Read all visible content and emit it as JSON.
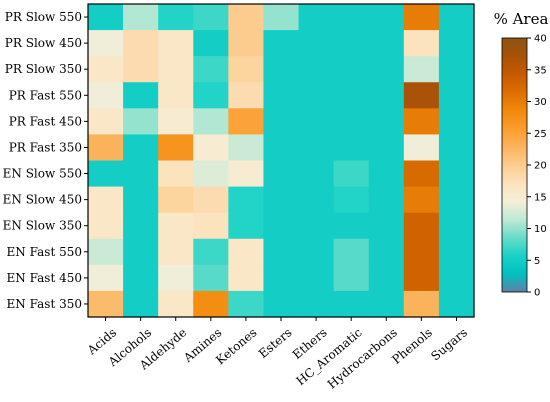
{
  "chart_data": {
    "type": "heatmap",
    "title": "",
    "xlabel": "",
    "ylabel": "",
    "x_categories": [
      "Acids",
      "Alcohols",
      "Aldehyde",
      "Amines",
      "Ketones",
      "Esters",
      "Ethers",
      "HC_Aromatic",
      "Hydrocarbons",
      "Phenols",
      "Sugars"
    ],
    "y_categories": [
      "PR Slow 550",
      "PR Slow 450",
      "PR Slow 350",
      "PR Fast 550",
      "PR Fast 450",
      "PR Fast 350",
      "EN Slow 550",
      "EN Slow 450",
      "EN Slow 350",
      "EN Fast 550",
      "EN Fast 450",
      "EN Fast 350"
    ],
    "values": [
      [
        5,
        11,
        6,
        7,
        20,
        10,
        5,
        5,
        5,
        30,
        5
      ],
      [
        14,
        18,
        16,
        5,
        20,
        5,
        5,
        5,
        5,
        17,
        5
      ],
      [
        16,
        18,
        16,
        7,
        19,
        5,
        5,
        5,
        5,
        12,
        5
      ],
      [
        14,
        5,
        16,
        6,
        18,
        5,
        5,
        5,
        5,
        37,
        5
      ],
      [
        16,
        10,
        15,
        11,
        25,
        5,
        5,
        5,
        5,
        30,
        5
      ],
      [
        23,
        5,
        27,
        15,
        12,
        5,
        5,
        5,
        5,
        14,
        5
      ],
      [
        5,
        5,
        17,
        13,
        15,
        5,
        5,
        7,
        5,
        32,
        5
      ],
      [
        16,
        5,
        19,
        18,
        6,
        5,
        5,
        6,
        5,
        30,
        5
      ],
      [
        16,
        5,
        16,
        17,
        6,
        5,
        5,
        5,
        5,
        33,
        5
      ],
      [
        12,
        5,
        16,
        7,
        16,
        5,
        5,
        8,
        5,
        33,
        5
      ],
      [
        14,
        5,
        14,
        8,
        16,
        5,
        5,
        8,
        5,
        33,
        5
      ],
      [
        22,
        5,
        16,
        28,
        7,
        5,
        5,
        5,
        5,
        23,
        5
      ]
    ],
    "colorbar": {
      "title": "% Area",
      "range": [
        0,
        40
      ],
      "ticks": [
        "0",
        "5",
        "10",
        "15",
        "20",
        "25",
        "30",
        "35",
        "40"
      ],
      "colors": [
        "#5f80a8",
        "#00c0c0",
        "#1ad2c8",
        "#68dcc8",
        "#bfe9d5",
        "#f5efd8",
        "#fbe2bd",
        "#fccc8e",
        "#fbb45d",
        "#fb9c2c",
        "#f18a0c",
        "#dd6f00",
        "#c65a00",
        "#a75208",
        "#8d5412"
      ]
    },
    "grid": false
  }
}
